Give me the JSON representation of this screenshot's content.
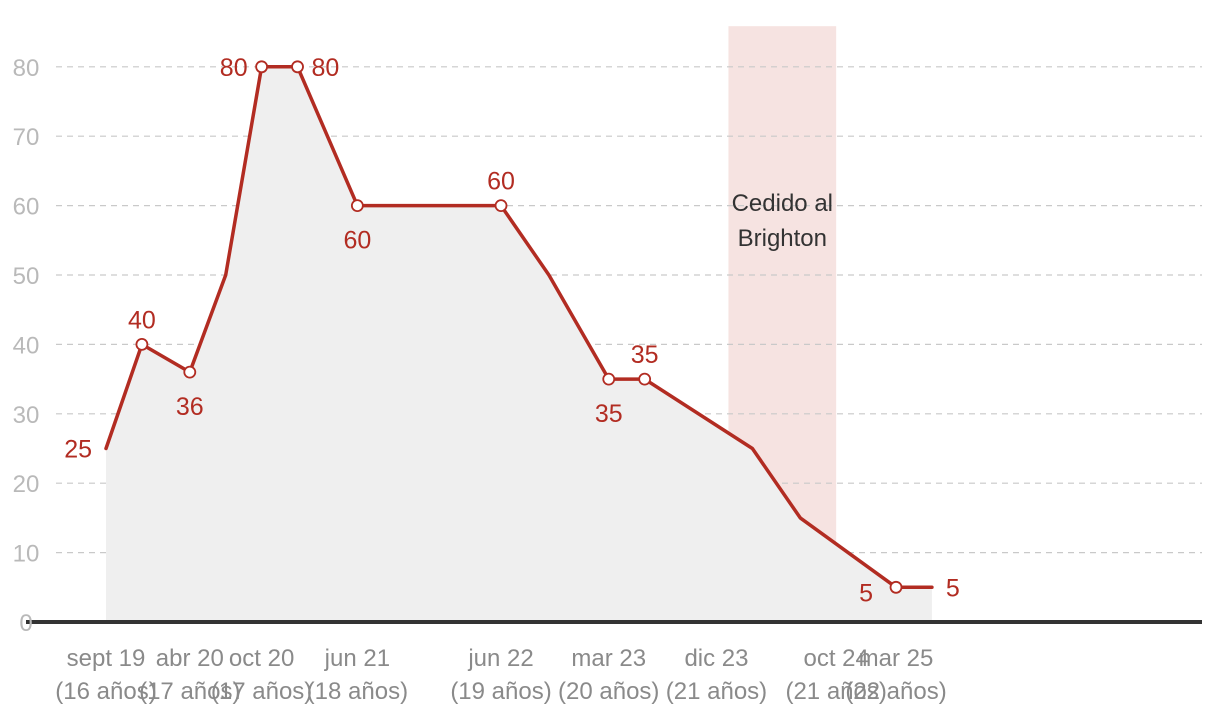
{
  "chart_data": {
    "type": "line",
    "title": "",
    "xlabel": "",
    "ylabel": "",
    "ylim": [
      0,
      86
    ],
    "yticks": [
      0,
      10,
      20,
      30,
      40,
      50,
      60,
      70,
      80
    ],
    "grid": true,
    "colors": {
      "line": "#b22c22",
      "area": "#efefef",
      "shade": "#f6e3e1",
      "baseline": "#333333"
    },
    "x_labels": [
      {
        "date": "2019-09",
        "line1": "sept 19",
        "line2": "(16 años)"
      },
      {
        "date": "2020-04",
        "line1": "abr 20",
        "line2": "(17 años)"
      },
      {
        "date": "2020-10",
        "line1": "oct 20",
        "line2": "(17 años)"
      },
      {
        "date": "2021-06",
        "line1": "jun 21",
        "line2": "(18 años)"
      },
      {
        "date": "2022-06",
        "line1": "jun 22",
        "line2": "(19 años)"
      },
      {
        "date": "2023-03",
        "line1": "mar 23",
        "line2": "(20 años)"
      },
      {
        "date": "2023-12",
        "line1": "dic 23",
        "line2": "(21 años)"
      },
      {
        "date": "2024-10",
        "line1": "oct 24",
        "line2": "(21 años)"
      },
      {
        "date": "2025-03",
        "line1": "mar 25",
        "line2": "(22 años)"
      }
    ],
    "series": [
      {
        "points": [
          {
            "date": "2019-09",
            "y": 25,
            "marker": false,
            "label": "25",
            "label_pos": "left"
          },
          {
            "date": "2019-12",
            "y": 40,
            "marker": true,
            "label": "40",
            "label_pos": "above"
          },
          {
            "date": "2020-04",
            "y": 36,
            "marker": true,
            "label": "36",
            "label_pos": "below"
          },
          {
            "date": "2020-07",
            "y": 50,
            "marker": false,
            "label": ""
          },
          {
            "date": "2020-10",
            "y": 80,
            "marker": true,
            "label": "80",
            "label_pos": "left"
          },
          {
            "date": "2021-01",
            "y": 80,
            "marker": true,
            "label": "80",
            "label_pos": "right"
          },
          {
            "date": "2021-06",
            "y": 60,
            "marker": true,
            "label": "60",
            "label_pos": "below"
          },
          {
            "date": "2022-06",
            "y": 60,
            "marker": true,
            "label": "60",
            "label_pos": "above"
          },
          {
            "date": "2022-10",
            "y": 50,
            "marker": false,
            "label": ""
          },
          {
            "date": "2023-03",
            "y": 35,
            "marker": true,
            "label": "35",
            "label_pos": "below"
          },
          {
            "date": "2023-06",
            "y": 35,
            "marker": true,
            "label": "35",
            "label_pos": "above"
          },
          {
            "date": "2024-03",
            "y": 25,
            "marker": false,
            "label": ""
          },
          {
            "date": "2024-07",
            "y": 15,
            "marker": false,
            "label": ""
          },
          {
            "date": "2025-03",
            "y": 5,
            "marker": true,
            "label": "5",
            "label_pos": "below-left"
          },
          {
            "date": "2025-06",
            "y": 5,
            "marker": false,
            "label": "5",
            "label_pos": "right"
          }
        ]
      }
    ],
    "shaded_period": {
      "start": "2024-01",
      "end": "2024-10",
      "label_lines": [
        "Cedido al",
        "Brighton"
      ]
    }
  }
}
